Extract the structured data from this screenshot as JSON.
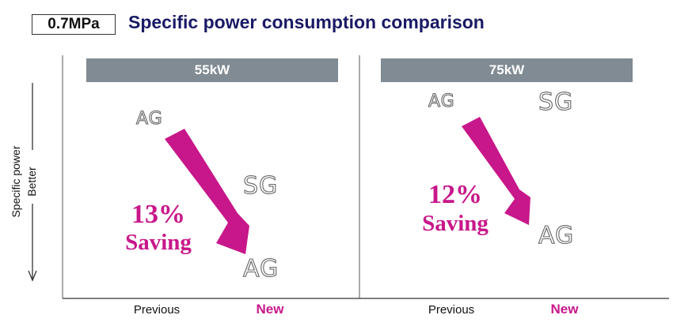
{
  "header": {
    "pressure": "0.7MPa",
    "title": "Specific power consumption comparison"
  },
  "y_axis": {
    "label": "Specific power",
    "direction_label": "Better"
  },
  "colors": {
    "accent": "#c8178a",
    "banner": "#808b93",
    "title": "#1a1a66"
  },
  "panels": [
    {
      "banner": "55kW",
      "previous_label": "Previous",
      "new_label": "New",
      "previous_model": "AG",
      "competitor_model": "SG",
      "new_model": "AG",
      "saving_percent": "13%",
      "saving_label": "Saving"
    },
    {
      "banner": "75kW",
      "previous_label": "Previous",
      "new_label": "New",
      "previous_model": "AG",
      "competitor_model": "SG",
      "new_model": "AG",
      "saving_percent": "12%",
      "saving_label": "Saving"
    }
  ]
}
